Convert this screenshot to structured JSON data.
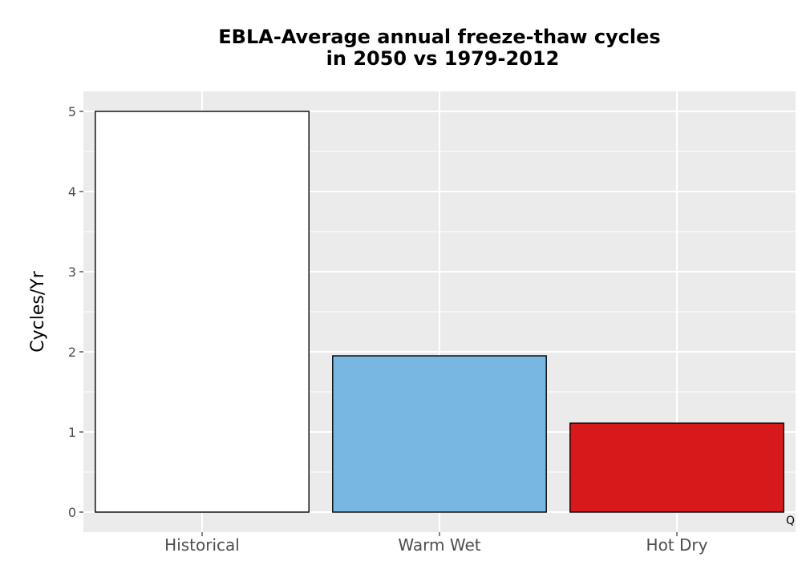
{
  "chart_data": {
    "type": "bar",
    "title_lines": [
      "EBLA-Average annual freeze-thaw cycles",
      "in 2050 vs 1979-2012"
    ],
    "xlabel": "",
    "ylabel": "Cycles/Yr",
    "categories": [
      "Historical",
      "Warm Wet",
      "Hot Dry"
    ],
    "values": [
      5.0,
      1.95,
      1.11
    ],
    "colors": [
      "#ffffff",
      "#78b7e1",
      "#d7191c"
    ],
    "bar_outline": "#000000",
    "ylim": [
      -0.25,
      5.25
    ],
    "yticks": [
      0,
      1,
      2,
      3,
      4,
      5
    ],
    "grid": true,
    "panel_background": "#ebebeb",
    "grid_color": "#ffffff",
    "caption": "Q"
  }
}
